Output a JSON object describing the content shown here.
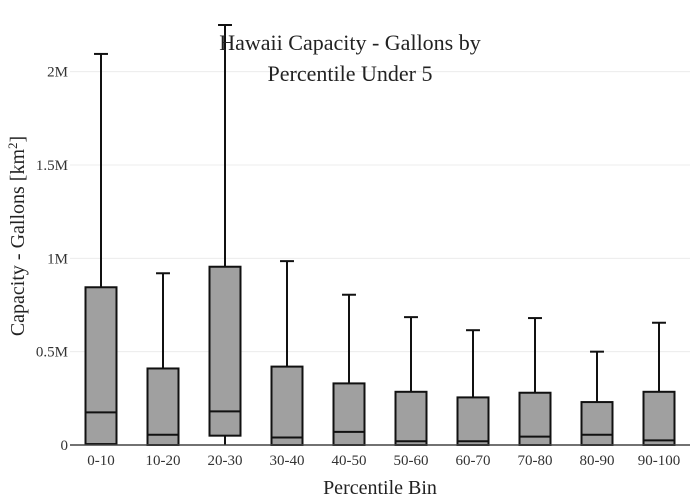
{
  "chart_data": {
    "type": "box",
    "title_lines": [
      "Hawaii Capacity - Gallons by",
      "Percentile Under 5"
    ],
    "xlabel": "Percentile Bin",
    "ylabel_main": "Capacity - Gallons  [km",
    "ylabel_sup": "2",
    "ylabel_end": "]",
    "ylim": [
      0,
      2250000
    ],
    "yticks": [
      {
        "value": 0,
        "label": "0"
      },
      {
        "value": 500000,
        "label": "0.5M"
      },
      {
        "value": 1000000,
        "label": "1M"
      },
      {
        "value": 1500000,
        "label": "1.5M"
      },
      {
        "value": 2000000,
        "label": "2M"
      }
    ],
    "grid": true,
    "box_color": "#a0a0a0",
    "line_color": "#111111",
    "categories": [
      "0-10",
      "10-20",
      "20-30",
      "30-40",
      "40-50",
      "50-60",
      "60-70",
      "70-80",
      "80-90",
      "90-100"
    ],
    "boxes": [
      {
        "min": 0,
        "q1": 5000,
        "median": 175000,
        "q3": 845000,
        "max": 2095000
      },
      {
        "min": 0,
        "q1": 0,
        "median": 55000,
        "q3": 410000,
        "max": 920000
      },
      {
        "min": 0,
        "q1": 50000,
        "median": 180000,
        "q3": 955000,
        "max": 2250000
      },
      {
        "min": 0,
        "q1": 0,
        "median": 40000,
        "q3": 420000,
        "max": 985000
      },
      {
        "min": 0,
        "q1": 0,
        "median": 70000,
        "q3": 330000,
        "max": 805000
      },
      {
        "min": 0,
        "q1": 0,
        "median": 20000,
        "q3": 285000,
        "max": 685000
      },
      {
        "min": 0,
        "q1": 0,
        "median": 20000,
        "q3": 255000,
        "max": 615000
      },
      {
        "min": 0,
        "q1": 0,
        "median": 45000,
        "q3": 280000,
        "max": 680000
      },
      {
        "min": 0,
        "q1": 0,
        "median": 55000,
        "q3": 230000,
        "max": 500000
      },
      {
        "min": 0,
        "q1": 0,
        "median": 25000,
        "q3": 285000,
        "max": 655000
      }
    ]
  }
}
